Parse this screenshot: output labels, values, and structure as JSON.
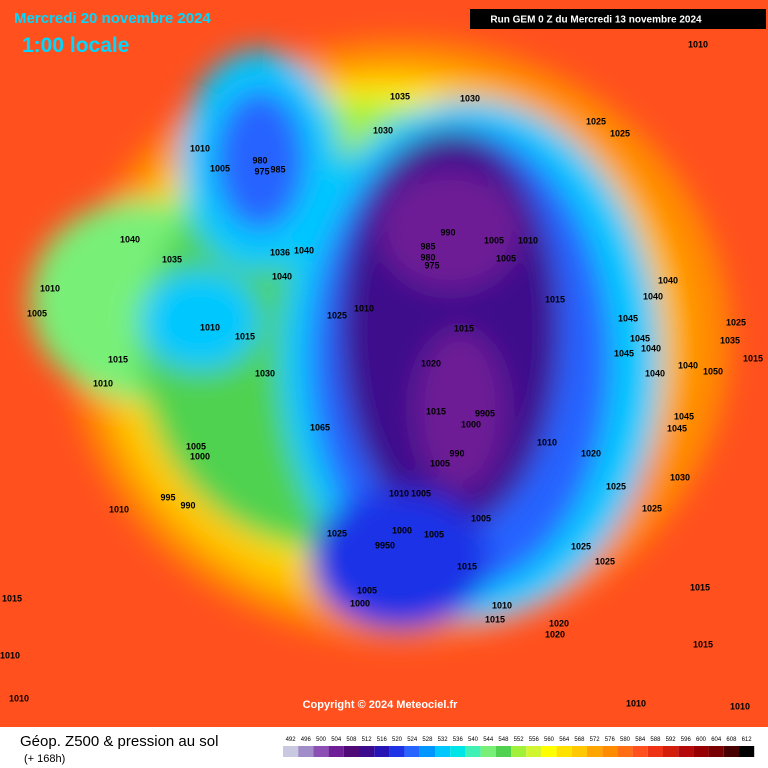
{
  "header": {
    "date": "Mercredi 20 novembre 2024",
    "time": "1:00 locale",
    "run": "Run GEM 0 Z du Mercredi 13 novembre 2024"
  },
  "footer": {
    "title": "Géop. Z500 & pression au sol",
    "lead": "(+ 168h)",
    "copyright": "Copyright © 2024 Meteociel.fr"
  },
  "colorbar": {
    "values": [
      492,
      496,
      500,
      504,
      508,
      512,
      516,
      520,
      524,
      528,
      532,
      536,
      540,
      544,
      548,
      552,
      556,
      560,
      564,
      568,
      572,
      576,
      580,
      584,
      588,
      592,
      596,
      600,
      604,
      608,
      612
    ],
    "colors": [
      "#c8c8e0",
      "#a08cc8",
      "#8c50b4",
      "#6e1e96",
      "#500a78",
      "#3c0a8c",
      "#2814b4",
      "#1e32e6",
      "#2864ff",
      "#0096ff",
      "#00c8ff",
      "#00e6e6",
      "#40f0b4",
      "#78f078",
      "#50d250",
      "#a0f03c",
      "#d2f532",
      "#ffff00",
      "#ffe100",
      "#ffc800",
      "#ffa500",
      "#ff8c00",
      "#ff6e14",
      "#ff501e",
      "#f03214",
      "#d21e0a",
      "#b40a0a",
      "#960000",
      "#780000",
      "#460000",
      "#000000"
    ]
  },
  "pressure_labels": [
    "1010",
    "1035",
    "1030",
    "1030",
    "1025",
    "1025",
    "1010",
    "980",
    "1005",
    "975",
    "985",
    "1040",
    "1035",
    "1036",
    "1040",
    "1040",
    "990",
    "985",
    "980",
    "975",
    "1005",
    "1010",
    "1005",
    "1015",
    "1040",
    "1040",
    "1045",
    "1025",
    "1045",
    "1035",
    "1040",
    "1045",
    "1015",
    "1040",
    "1050",
    "1040",
    "1010",
    "1005",
    "1010",
    "1015",
    "1025",
    "1010",
    "1015",
    "1020",
    "1015",
    "1010",
    "1030",
    "1015",
    "9905",
    "1000",
    "1065",
    "1045",
    "1045",
    "1010",
    "1020",
    "1030",
    "1005",
    "1000",
    "990",
    "1005",
    "1025",
    "995",
    "990",
    "1010",
    "1010",
    "1005",
    "1025",
    "1005",
    "1000",
    "1005",
    "1025",
    "9950",
    "1025",
    "1025",
    "1015",
    "1005",
    "1000",
    "1015",
    "1010",
    "1015",
    "1015",
    "1020",
    "1020",
    "1015",
    "1010",
    "1010",
    "1010",
    "1010"
  ]
}
